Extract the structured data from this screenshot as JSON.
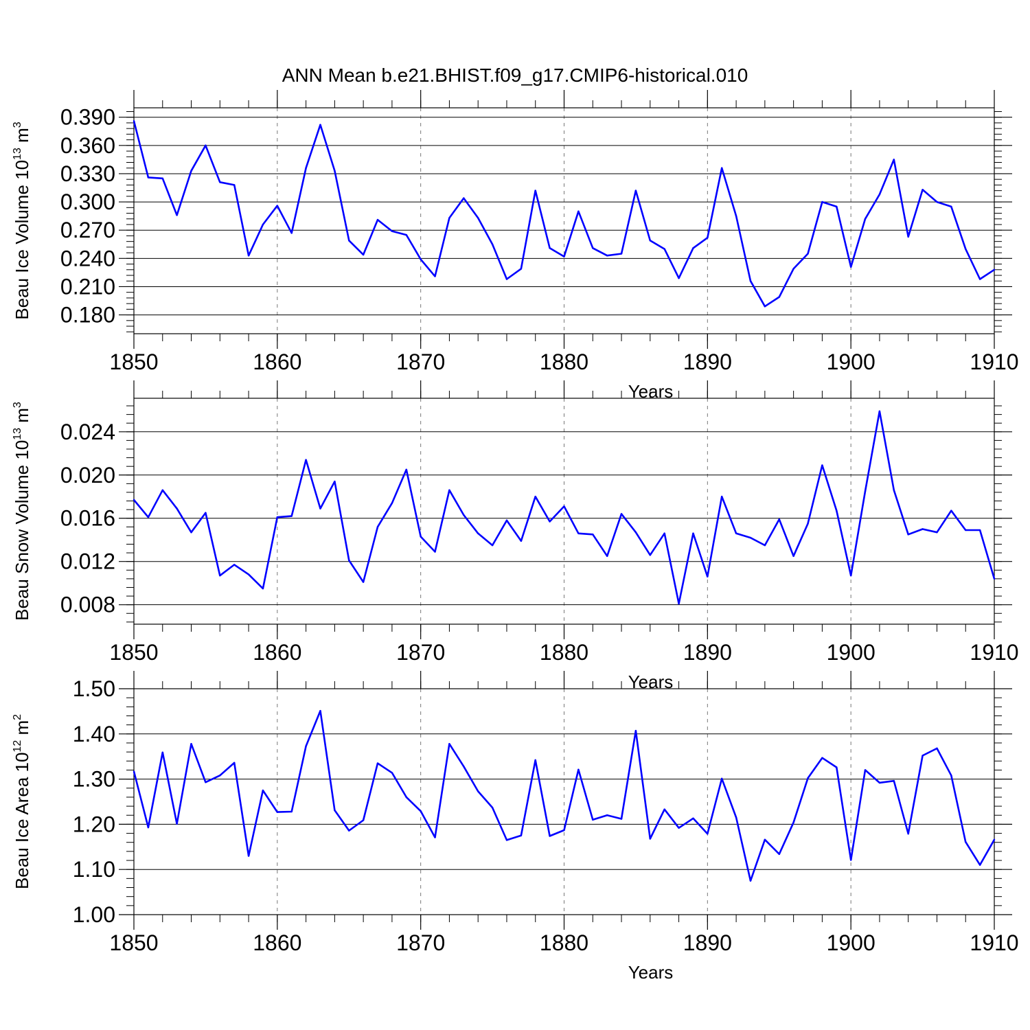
{
  "figure": {
    "title": "ANN Mean b.e21.BHIST.f09_g17.CMIP6-historical.010"
  },
  "chart_data": [
    {
      "type": "line",
      "name": "ice-volume",
      "ylabel": {
        "main": "Beau Ice Volume 10",
        "exp": "13",
        "mid": " m",
        "exp2": "3"
      },
      "xlabel": "Years",
      "xlim": [
        1850,
        1910
      ],
      "ylim": [
        0.16,
        0.4
      ],
      "yticks": [
        0.18,
        0.21,
        0.24,
        0.27,
        0.3,
        0.33,
        0.36,
        0.39
      ],
      "ytick_labels": [
        "0.180",
        "0.210",
        "0.240",
        "0.270",
        "0.300",
        "0.330",
        "0.360",
        "0.390"
      ],
      "xticks": [
        1850,
        1860,
        1870,
        1880,
        1890,
        1900,
        1910
      ],
      "xtick_labels": [
        "1850",
        "1860",
        "1870",
        "1880",
        "1890",
        "1900",
        "1910"
      ],
      "ymajor_step": 0.03,
      "yminor_step": 0.006,
      "color": "#0000ff",
      "grid": "vertical dashed at decades",
      "x": [
        1850,
        1851,
        1852,
        1853,
        1854,
        1855,
        1856,
        1857,
        1858,
        1859,
        1860,
        1861,
        1862,
        1863,
        1864,
        1865,
        1866,
        1867,
        1868,
        1869,
        1870,
        1871,
        1872,
        1873,
        1874,
        1875,
        1876,
        1877,
        1878,
        1879,
        1880,
        1881,
        1882,
        1883,
        1884,
        1885,
        1886,
        1887,
        1888,
        1889,
        1890,
        1891,
        1892,
        1893,
        1894,
        1895,
        1896,
        1897,
        1898,
        1899,
        1900,
        1901,
        1902,
        1903,
        1904,
        1905,
        1906,
        1907,
        1908,
        1909,
        1910
      ],
      "values": [
        0.386,
        0.326,
        0.325,
        0.286,
        0.333,
        0.36,
        0.321,
        0.318,
        0.243,
        0.276,
        0.296,
        0.267,
        0.336,
        0.382,
        0.333,
        0.259,
        0.244,
        0.281,
        0.269,
        0.265,
        0.239,
        0.221,
        0.283,
        0.304,
        0.283,
        0.255,
        0.218,
        0.229,
        0.312,
        0.251,
        0.242,
        0.29,
        0.251,
        0.243,
        0.245,
        0.312,
        0.259,
        0.25,
        0.219,
        0.251,
        0.262,
        0.336,
        0.285,
        0.216,
        0.189,
        0.199,
        0.229,
        0.245,
        0.3,
        0.295,
        0.231,
        0.282,
        0.308,
        0.345,
        0.263,
        0.313,
        0.3,
        0.295,
        0.25,
        0.218,
        0.228
      ]
    },
    {
      "type": "line",
      "name": "snow-volume",
      "ylabel": {
        "main": "Beau Snow Volume 10",
        "exp": "13",
        "mid": " m",
        "exp2": "3"
      },
      "xlabel": "Years",
      "xlim": [
        1850,
        1910
      ],
      "ylim": [
        0.0062,
        0.0271
      ],
      "yticks": [
        0.008,
        0.012,
        0.016,
        0.02,
        0.024
      ],
      "ytick_labels": [
        "0.008",
        "0.012",
        "0.016",
        "0.020",
        "0.024"
      ],
      "xticks": [
        1850,
        1860,
        1870,
        1880,
        1890,
        1900,
        1910
      ],
      "xtick_labels": [
        "1850",
        "1860",
        "1870",
        "1880",
        "1890",
        "1900",
        "1910"
      ],
      "ymajor_step": 0.004,
      "yminor_step": 0.0008,
      "color": "#0000ff",
      "grid": "vertical dashed at decades",
      "x": [
        1850,
        1851,
        1852,
        1853,
        1854,
        1855,
        1856,
        1857,
        1858,
        1859,
        1860,
        1861,
        1862,
        1863,
        1864,
        1865,
        1866,
        1867,
        1868,
        1869,
        1870,
        1871,
        1872,
        1873,
        1874,
        1875,
        1876,
        1877,
        1878,
        1879,
        1880,
        1881,
        1882,
        1883,
        1884,
        1885,
        1886,
        1887,
        1888,
        1889,
        1890,
        1891,
        1892,
        1893,
        1894,
        1895,
        1896,
        1897,
        1898,
        1899,
        1900,
        1901,
        1902,
        1903,
        1904,
        1905,
        1906,
        1907,
        1908,
        1909,
        1910
      ],
      "values": [
        0.0177,
        0.0161,
        0.0186,
        0.0169,
        0.0147,
        0.0165,
        0.0107,
        0.0117,
        0.0108,
        0.0095,
        0.0161,
        0.0162,
        0.0214,
        0.0169,
        0.0194,
        0.0121,
        0.0101,
        0.0152,
        0.0174,
        0.0205,
        0.0143,
        0.0129,
        0.0186,
        0.0163,
        0.0146,
        0.0135,
        0.0158,
        0.0139,
        0.018,
        0.0157,
        0.0171,
        0.0146,
        0.0145,
        0.0125,
        0.0164,
        0.0147,
        0.0126,
        0.0146,
        0.0081,
        0.0146,
        0.0106,
        0.018,
        0.0146,
        0.0142,
        0.0135,
        0.0159,
        0.0125,
        0.0155,
        0.0209,
        0.0167,
        0.0107,
        0.0185,
        0.0259,
        0.0186,
        0.0145,
        0.015,
        0.0147,
        0.0167,
        0.0149,
        0.0149,
        0.0104
      ]
    },
    {
      "type": "line",
      "name": "ice-area",
      "ylabel": {
        "main": "Beau Ice Area 10",
        "exp": "12",
        "mid": " m",
        "exp2": "2"
      },
      "xlabel": "Years",
      "xlim": [
        1850,
        1910
      ],
      "ylim": [
        1.0,
        1.5
      ],
      "yticks": [
        1.0,
        1.1,
        1.2,
        1.3,
        1.4,
        1.5
      ],
      "ytick_labels": [
        "1.00",
        "1.10",
        "1.20",
        "1.30",
        "1.40",
        "1.50"
      ],
      "xticks": [
        1850,
        1860,
        1870,
        1880,
        1890,
        1900,
        1910
      ],
      "xtick_labels": [
        "1850",
        "1860",
        "1870",
        "1880",
        "1890",
        "1900",
        "1910"
      ],
      "ymajor_step": 0.1,
      "yminor_step": 0.02,
      "color": "#0000ff",
      "grid": "vertical dashed at decades",
      "x": [
        1850,
        1851,
        1852,
        1853,
        1854,
        1855,
        1856,
        1857,
        1858,
        1859,
        1860,
        1861,
        1862,
        1863,
        1864,
        1865,
        1866,
        1867,
        1868,
        1869,
        1870,
        1871,
        1872,
        1873,
        1874,
        1875,
        1876,
        1877,
        1878,
        1879,
        1880,
        1881,
        1882,
        1883,
        1884,
        1885,
        1886,
        1887,
        1888,
        1889,
        1890,
        1891,
        1892,
        1893,
        1894,
        1895,
        1896,
        1897,
        1898,
        1899,
        1900,
        1901,
        1902,
        1903,
        1904,
        1905,
        1906,
        1907,
        1908,
        1909,
        1910
      ],
      "values": [
        1.317,
        1.193,
        1.359,
        1.201,
        1.378,
        1.293,
        1.308,
        1.336,
        1.13,
        1.275,
        1.227,
        1.228,
        1.373,
        1.451,
        1.231,
        1.186,
        1.209,
        1.335,
        1.314,
        1.26,
        1.229,
        1.171,
        1.378,
        1.328,
        1.273,
        1.237,
        1.165,
        1.175,
        1.342,
        1.174,
        1.187,
        1.321,
        1.21,
        1.22,
        1.212,
        1.407,
        1.168,
        1.233,
        1.192,
        1.213,
        1.179,
        1.301,
        1.215,
        1.075,
        1.166,
        1.134,
        1.204,
        1.302,
        1.347,
        1.326,
        1.121,
        1.32,
        1.292,
        1.296,
        1.179,
        1.352,
        1.368,
        1.308,
        1.161,
        1.11,
        1.166
      ]
    }
  ]
}
